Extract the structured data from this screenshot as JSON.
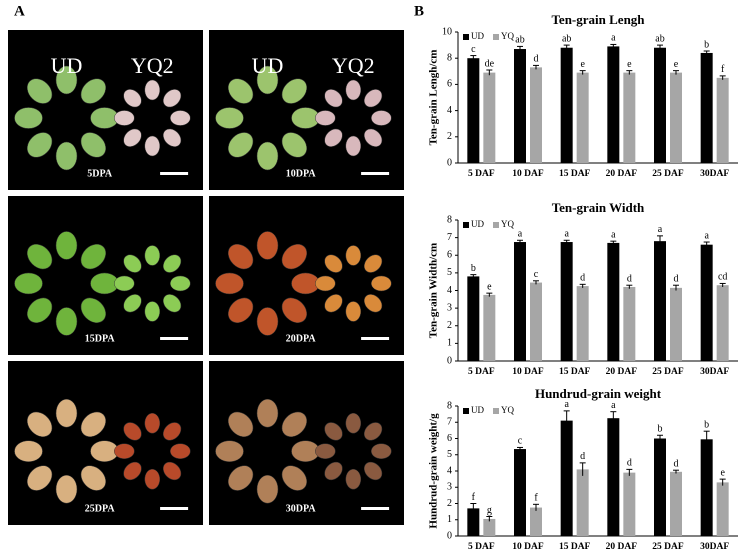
{
  "panel_a": {
    "label": "A",
    "photos": [
      {
        "labels": [
          "UD",
          "YQ2"
        ],
        "stage": "5DPA"
      },
      {
        "labels": [
          "UD",
          "YQ2"
        ],
        "stage": "10DPA"
      },
      {
        "labels": [],
        "stage": "15DPA"
      },
      {
        "labels": [],
        "stage": "20DPA"
      },
      {
        "labels": [],
        "stage": "25DPA"
      },
      {
        "labels": [],
        "stage": "30DPA"
      }
    ]
  },
  "panel_b": {
    "label": "B"
  },
  "chart_data": [
    {
      "type": "bar",
      "title": "Ten-grain Lengh",
      "y_label": "Ten-grain Lengh/cm",
      "categories": [
        "5 DAF",
        "10 DAF",
        "15 DAF",
        "20 DAF",
        "25 DAF",
        "30DAF"
      ],
      "series": [
        {
          "name": "UD",
          "color": "#000000",
          "values": [
            8.0,
            8.7,
            8.8,
            8.9,
            8.8,
            8.4
          ],
          "errors": [
            0.2,
            0.2,
            0.2,
            0.15,
            0.2,
            0.15
          ],
          "letters": [
            "c",
            "ab",
            "ab",
            "a",
            "ab",
            "b"
          ]
        },
        {
          "name": "YQ",
          "color": "#a6a6a6",
          "values": [
            6.9,
            7.3,
            6.9,
            6.9,
            6.9,
            6.5
          ],
          "errors": [
            0.2,
            0.15,
            0.15,
            0.15,
            0.15,
            0.15
          ],
          "letters": [
            "de",
            "d",
            "e",
            "e",
            "e",
            "f"
          ]
        }
      ],
      "ylim": [
        0,
        10
      ],
      "yticks": [
        0,
        2,
        4,
        6,
        8,
        10
      ],
      "legend": "top-left"
    },
    {
      "type": "bar",
      "title": "Ten-grain Width",
      "y_label": "Ten-grain Width/cm",
      "categories": [
        "5 DAF",
        "10 DAF",
        "15 DAF",
        "20 DAF",
        "25 DAF",
        "30DAF"
      ],
      "series": [
        {
          "name": "UD",
          "color": "#000000",
          "values": [
            4.8,
            6.75,
            6.75,
            6.7,
            6.8,
            6.6
          ],
          "errors": [
            0.1,
            0.1,
            0.1,
            0.1,
            0.3,
            0.15
          ],
          "letters": [
            "b",
            "a",
            "a",
            "a",
            "a",
            "a"
          ]
        },
        {
          "name": "YQ",
          "color": "#a6a6a6",
          "values": [
            3.75,
            4.45,
            4.25,
            4.2,
            4.15,
            4.3
          ],
          "errors": [
            0.1,
            0.1,
            0.1,
            0.1,
            0.15,
            0.1
          ],
          "letters": [
            "e",
            "c",
            "d",
            "d",
            "d",
            "cd"
          ]
        }
      ],
      "ylim": [
        0,
        8
      ],
      "yticks": [
        0,
        1,
        2,
        3,
        4,
        5,
        6,
        7,
        8
      ],
      "legend": "top-left"
    },
    {
      "type": "bar",
      "title": "Hundrud-grain weight",
      "y_label": "Hundrud-grain weight/g",
      "categories": [
        "5 DAF",
        "10 DAF",
        "15 DAF",
        "20 DAF",
        "25 DAF",
        "30DAF"
      ],
      "series": [
        {
          "name": "UD",
          "color": "#000000",
          "values": [
            1.7,
            5.35,
            7.1,
            7.25,
            6.0,
            5.95
          ],
          "errors": [
            0.3,
            0.1,
            0.6,
            0.4,
            0.2,
            0.5
          ],
          "letters": [
            "f",
            "c",
            "a",
            "a",
            "b",
            "b"
          ]
        },
        {
          "name": "YQ",
          "color": "#a6a6a6",
          "values": [
            1.05,
            1.75,
            4.1,
            3.9,
            3.95,
            3.3
          ],
          "errors": [
            0.15,
            0.2,
            0.4,
            0.2,
            0.1,
            0.2
          ],
          "letters": [
            "g",
            "f",
            "d",
            "d",
            "d",
            "e"
          ]
        }
      ],
      "ylim": [
        0,
        8
      ],
      "yticks": [
        0,
        1,
        2,
        3,
        4,
        5,
        6,
        7,
        8
      ],
      "legend": "top-left"
    }
  ]
}
